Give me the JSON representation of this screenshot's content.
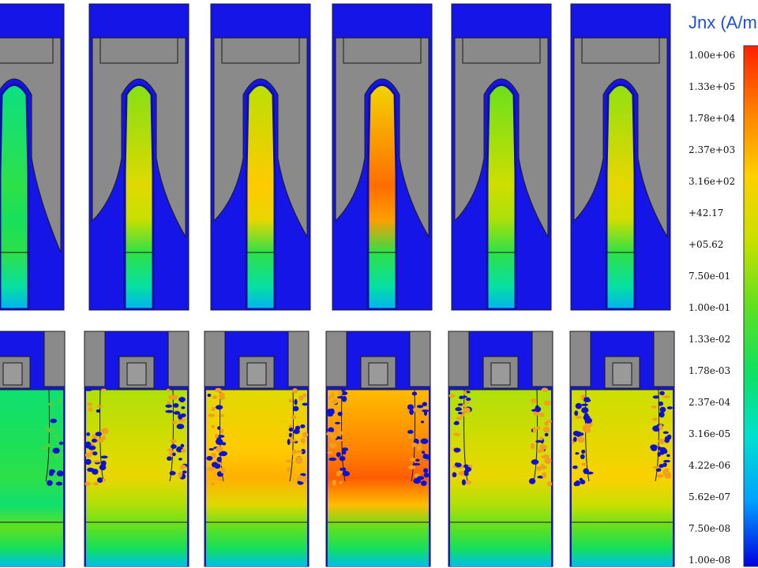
{
  "legend": {
    "title": "Jnx (A/m",
    "ticks": [
      "1.00e+06",
      "1.33e+05",
      "1.78e+04",
      "2.37e+03",
      "3.16e+02",
      "+42.17",
      "+05.62",
      "7.50e-01",
      "1.00e-01",
      "1.33e-02",
      "1.78e-03",
      "2.37e-04",
      "3.16e-05",
      "4.22e-06",
      "5.62e-07",
      "7.50e-08",
      "1.00e-08"
    ],
    "colormap": [
      "#0000e0",
      "#00a0ff",
      "#00e0d0",
      "#10e060",
      "#60e020",
      "#c8e000",
      "#ffd000",
      "#ff8000",
      "#ff2000"
    ]
  },
  "colors": {
    "background": "#ffffff",
    "oxide": "#1515e8",
    "gate": "#8a8a8a",
    "outline": "#1a1a1a",
    "speckle_orange": "#f0a020",
    "speckle_blue": "#1010d0"
  },
  "panels_top": [
    {
      "level": 0.42
    },
    {
      "level": 0.68
    },
    {
      "level": 0.76
    },
    {
      "level": 0.9
    },
    {
      "level": 0.64
    },
    {
      "level": 0.7
    }
  ],
  "panels_bottom": [
    {
      "level": 0.42,
      "speckle": "low"
    },
    {
      "level": 0.7,
      "speckle": "high"
    },
    {
      "level": 0.8,
      "speckle": "high"
    },
    {
      "level": 0.92,
      "speckle": "high"
    },
    {
      "level": 0.7,
      "speckle": "high"
    },
    {
      "level": 0.74,
      "speckle": "high"
    }
  ]
}
